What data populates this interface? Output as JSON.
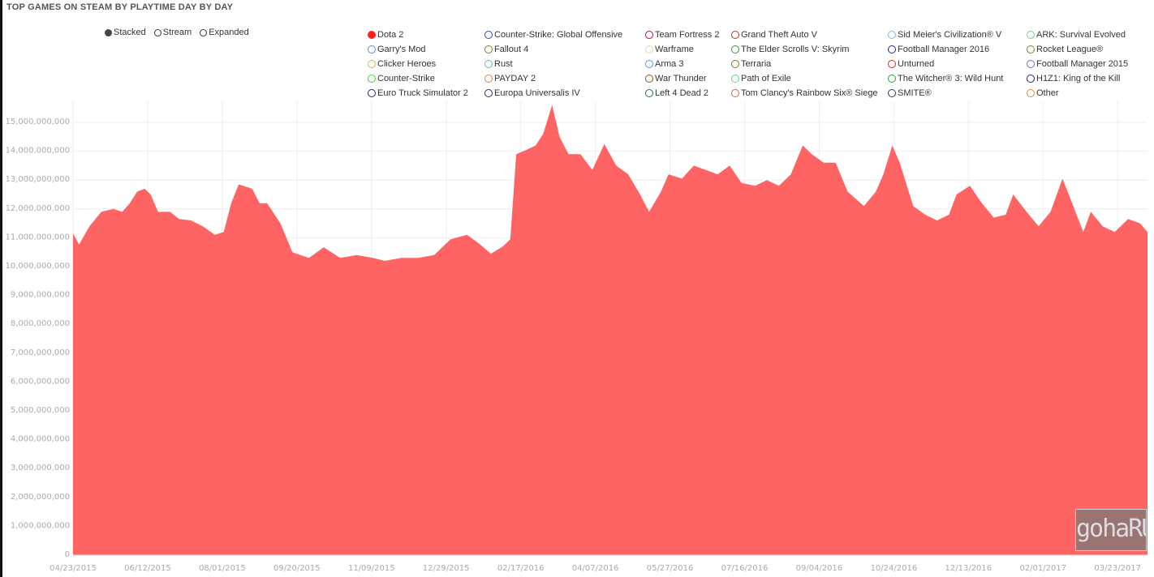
{
  "header": {
    "title": "TOP GAMES ON STEAM BY PLAYTIME DAY BY DAY"
  },
  "modes": [
    {
      "label": "Stacked",
      "selected": true
    },
    {
      "label": "Stream",
      "selected": false
    },
    {
      "label": "Expanded",
      "selected": false
    }
  ],
  "legend": [
    {
      "label": "Dota 2",
      "color": "#ff2020",
      "active": true
    },
    {
      "label": "Counter-Strike: Global Offensive",
      "color": "#3344bb"
    },
    {
      "label": "Team Fortress 2",
      "color": "#a01040"
    },
    {
      "label": "Grand Theft Auto V",
      "color": "#c03030"
    },
    {
      "label": "Sid Meier's Civilization® V",
      "color": "#88bbdd"
    },
    {
      "label": "ARK: Survival Evolved",
      "color": "#77cc99"
    },
    {
      "label": "Garry's Mod",
      "color": "#6688cc"
    },
    {
      "label": "Fallout 4",
      "color": "#887722"
    },
    {
      "label": "Warframe",
      "color": "#ddd8a0"
    },
    {
      "label": "The Elder Scrolls V: Skyrim",
      "color": "#339944"
    },
    {
      "label": "Football Manager 2016",
      "color": "#2222aa"
    },
    {
      "label": "Rocket League®",
      "color": "#778822"
    },
    {
      "label": "Clicker Heroes",
      "color": "#bbbb66"
    },
    {
      "label": "Rust",
      "color": "#66bbaa"
    },
    {
      "label": "Arma 3",
      "color": "#5599dd"
    },
    {
      "label": "Terraria",
      "color": "#777722"
    },
    {
      "label": "Unturned",
      "color": "#dd2222"
    },
    {
      "label": "Football Manager 2015",
      "color": "#7766dd"
    },
    {
      "label": "Counter-Strike",
      "color": "#44cc44"
    },
    {
      "label": "PAYDAY 2",
      "color": "#cc8855"
    },
    {
      "label": "War Thunder",
      "color": "#885511"
    },
    {
      "label": "Path of Exile",
      "color": "#66cc99"
    },
    {
      "label": "The Witcher® 3: Wild Hunt",
      "color": "#22aa33"
    },
    {
      "label": "H1Z1: King of the Kill",
      "color": "#222266"
    },
    {
      "label": "Euro Truck Simulator 2",
      "color": "#222288"
    },
    {
      "label": "Europa Universalis IV",
      "color": "#223366"
    },
    {
      "label": "Left 4 Dead 2",
      "color": "#226666"
    },
    {
      "label": "Tom Clancy's Rainbow Six® Siege",
      "color": "#cc6655"
    },
    {
      "label": "SMITE®",
      "color": "#333366"
    },
    {
      "label": "Other",
      "color": "#ee8833"
    }
  ],
  "watermark": {
    "text": "gohaRU"
  },
  "chart_data": {
    "type": "area",
    "title": "TOP GAMES ON STEAM BY PLAYTIME DAY BY DAY",
    "xlabel": "",
    "ylabel": "",
    "series": [
      {
        "name": "Dota 2",
        "color": "#ff6464"
      }
    ],
    "x_unit": "days since 04/23/2015",
    "x_range": [
      0,
      720
    ],
    "ylim": [
      0,
      15000000000
    ],
    "y_ticks": [
      "0",
      "1,000,000,000",
      "2,000,000,000",
      "3,000,000,000",
      "4,000,000,000",
      "5,000,000,000",
      "6,000,000,000",
      "7,000,000,000",
      "8,000,000,000",
      "9,000,000,000",
      "10,000,000,000",
      "11,000,000,000",
      "12,000,000,000",
      "13,000,000,000",
      "14,000,000,000",
      "15,000,000,000"
    ],
    "x_ticks": [
      {
        "day": 0,
        "label": "04/23/2015"
      },
      {
        "day": 50,
        "label": "06/12/2015"
      },
      {
        "day": 100,
        "label": "08/01/2015"
      },
      {
        "day": 150,
        "label": "09/20/2015"
      },
      {
        "day": 200,
        "label": "11/09/2015"
      },
      {
        "day": 250,
        "label": "12/29/2015"
      },
      {
        "day": 300,
        "label": "02/17/2016"
      },
      {
        "day": 350,
        "label": "04/07/2016"
      },
      {
        "day": 400,
        "label": "05/27/2016"
      },
      {
        "day": 450,
        "label": "07/16/2016"
      },
      {
        "day": 500,
        "label": "09/04/2016"
      },
      {
        "day": 550,
        "label": "10/24/2016"
      },
      {
        "day": 600,
        "label": "12/13/2016"
      },
      {
        "day": 650,
        "label": "02/01/2017"
      },
      {
        "day": 700,
        "label": "03/23/2017"
      }
    ],
    "grid": true,
    "points_billions": [
      [
        0,
        11.15
      ],
      [
        4,
        10.76
      ],
      [
        11,
        11.4
      ],
      [
        19,
        11.9
      ],
      [
        27,
        12.0
      ],
      [
        33,
        11.9
      ],
      [
        38,
        12.2
      ],
      [
        43,
        12.6
      ],
      [
        48,
        12.7
      ],
      [
        52,
        12.5
      ],
      [
        57,
        11.9
      ],
      [
        65,
        11.9
      ],
      [
        71,
        11.65
      ],
      [
        79,
        11.6
      ],
      [
        87,
        11.4
      ],
      [
        95,
        11.1
      ],
      [
        101,
        11.2
      ],
      [
        106,
        12.2
      ],
      [
        111,
        12.85
      ],
      [
        120,
        12.7
      ],
      [
        125,
        12.2
      ],
      [
        130,
        12.2
      ],
      [
        139,
        11.5
      ],
      [
        147,
        10.5
      ],
      [
        158,
        10.3
      ],
      [
        168,
        10.67
      ],
      [
        179,
        10.3
      ],
      [
        190,
        10.4
      ],
      [
        201,
        10.3
      ],
      [
        209,
        10.2
      ],
      [
        220,
        10.3
      ],
      [
        231,
        10.3
      ],
      [
        242,
        10.4
      ],
      [
        253,
        10.95
      ],
      [
        264,
        11.1
      ],
      [
        272,
        10.8
      ],
      [
        280,
        10.45
      ],
      [
        288,
        10.7
      ],
      [
        293,
        10.95
      ],
      [
        297,
        13.9
      ],
      [
        304,
        14.05
      ],
      [
        310,
        14.2
      ],
      [
        315,
        14.6
      ],
      [
        321,
        15.6
      ],
      [
        326,
        14.5
      ],
      [
        332,
        13.9
      ],
      [
        340,
        13.9
      ],
      [
        348,
        13.35
      ],
      [
        356,
        14.25
      ],
      [
        364,
        13.5
      ],
      [
        372,
        13.2
      ],
      [
        380,
        12.5
      ],
      [
        386,
        11.9
      ],
      [
        394,
        12.6
      ],
      [
        399,
        13.2
      ],
      [
        408,
        13.05
      ],
      [
        416,
        13.5
      ],
      [
        424,
        13.35
      ],
      [
        432,
        13.2
      ],
      [
        440,
        13.5
      ],
      [
        448,
        12.9
      ],
      [
        457,
        12.8
      ],
      [
        465,
        13.0
      ],
      [
        473,
        12.8
      ],
      [
        481,
        13.2
      ],
      [
        489,
        14.2
      ],
      [
        495,
        13.9
      ],
      [
        503,
        13.6
      ],
      [
        511,
        13.6
      ],
      [
        519,
        12.6
      ],
      [
        530,
        12.1
      ],
      [
        538,
        12.6
      ],
      [
        543,
        13.2
      ],
      [
        549,
        14.2
      ],
      [
        554,
        13.6
      ],
      [
        563,
        12.1
      ],
      [
        571,
        11.8
      ],
      [
        579,
        11.6
      ],
      [
        587,
        11.8
      ],
      [
        592,
        12.5
      ],
      [
        601,
        12.8
      ],
      [
        609,
        12.2
      ],
      [
        617,
        11.7
      ],
      [
        625,
        11.8
      ],
      [
        630,
        12.5
      ],
      [
        639,
        11.9
      ],
      [
        647,
        11.4
      ],
      [
        655,
        11.9
      ],
      [
        663,
        13.05
      ],
      [
        668,
        12.4
      ],
      [
        677,
        11.2
      ],
      [
        682,
        11.9
      ],
      [
        690,
        11.4
      ],
      [
        698,
        11.2
      ],
      [
        707,
        11.65
      ],
      [
        715,
        11.5
      ],
      [
        720,
        11.2
      ]
    ]
  }
}
